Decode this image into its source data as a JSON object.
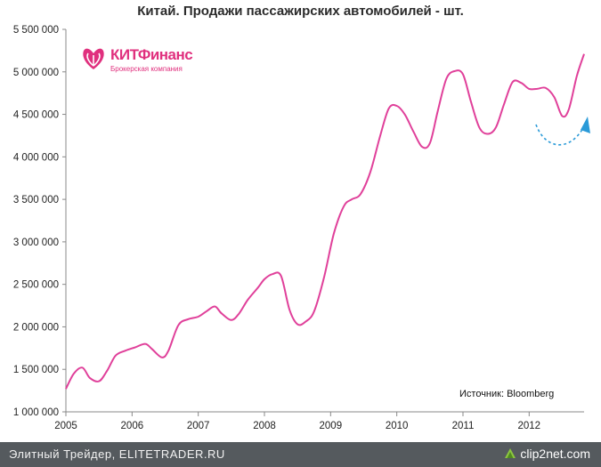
{
  "chart_data": {
    "type": "line",
    "title": "Китай. Продажи пассажирских автомобилей - шт.",
    "xlabel": "",
    "ylabel": "",
    "xlim": [
      2005.0,
      2012.83
    ],
    "ylim": [
      1000000,
      5500000
    ],
    "y_ticks": [
      "1 000 000",
      "1 500 000",
      "2 000 000",
      "2 500 000",
      "3 000 000",
      "3 500 000",
      "4 000 000",
      "4 500 000",
      "5 000 000",
      "5 500 000"
    ],
    "y_tick_values": [
      1000000,
      1500000,
      2000000,
      2500000,
      3000000,
      3500000,
      4000000,
      4500000,
      5000000,
      5500000
    ],
    "x_ticks": [
      "2005",
      "2006",
      "2007",
      "2008",
      "2009",
      "2010",
      "2011",
      "2012"
    ],
    "x_tick_values": [
      2005,
      2006,
      2007,
      2008,
      2009,
      2010,
      2011,
      2012
    ],
    "grid": false,
    "line_color": "#e0409a",
    "arrow_color": "#2a9ad8",
    "series": [
      {
        "points": [
          [
            2005.0,
            1270000
          ],
          [
            2005.12,
            1450000
          ],
          [
            2005.25,
            1520000
          ],
          [
            2005.36,
            1400000
          ],
          [
            2005.5,
            1360000
          ],
          [
            2005.62,
            1480000
          ],
          [
            2005.75,
            1660000
          ],
          [
            2005.9,
            1720000
          ],
          [
            2006.05,
            1760000
          ],
          [
            2006.2,
            1800000
          ],
          [
            2006.3,
            1740000
          ],
          [
            2006.45,
            1640000
          ],
          [
            2006.55,
            1720000
          ],
          [
            2006.7,
            2020000
          ],
          [
            2006.85,
            2090000
          ],
          [
            2007.0,
            2120000
          ],
          [
            2007.12,
            2180000
          ],
          [
            2007.25,
            2240000
          ],
          [
            2007.35,
            2160000
          ],
          [
            2007.5,
            2080000
          ],
          [
            2007.62,
            2160000
          ],
          [
            2007.75,
            2320000
          ],
          [
            2007.9,
            2460000
          ],
          [
            2008.0,
            2560000
          ],
          [
            2008.12,
            2620000
          ],
          [
            2008.25,
            2600000
          ],
          [
            2008.38,
            2200000
          ],
          [
            2008.5,
            2030000
          ],
          [
            2008.62,
            2060000
          ],
          [
            2008.75,
            2180000
          ],
          [
            2008.9,
            2580000
          ],
          [
            2009.05,
            3100000
          ],
          [
            2009.2,
            3420000
          ],
          [
            2009.32,
            3500000
          ],
          [
            2009.45,
            3560000
          ],
          [
            2009.6,
            3820000
          ],
          [
            2009.75,
            4250000
          ],
          [
            2009.88,
            4570000
          ],
          [
            2010.0,
            4600000
          ],
          [
            2010.12,
            4500000
          ],
          [
            2010.25,
            4300000
          ],
          [
            2010.38,
            4120000
          ],
          [
            2010.5,
            4160000
          ],
          [
            2010.62,
            4540000
          ],
          [
            2010.75,
            4920000
          ],
          [
            2010.88,
            5010000
          ],
          [
            2011.0,
            4970000
          ],
          [
            2011.12,
            4650000
          ],
          [
            2011.25,
            4340000
          ],
          [
            2011.38,
            4270000
          ],
          [
            2011.5,
            4350000
          ],
          [
            2011.62,
            4620000
          ],
          [
            2011.75,
            4880000
          ],
          [
            2011.88,
            4870000
          ],
          [
            2012.0,
            4800000
          ],
          [
            2012.12,
            4800000
          ],
          [
            2012.25,
            4810000
          ],
          [
            2012.38,
            4700000
          ],
          [
            2012.5,
            4480000
          ],
          [
            2012.6,
            4560000
          ],
          [
            2012.72,
            4950000
          ],
          [
            2012.83,
            5210000
          ]
        ]
      }
    ]
  },
  "logo": {
    "name": "КИТФинанс",
    "subtitle": "Брокерская компания"
  },
  "source_note": "Источник: Bloomberg",
  "footer": {
    "text": "Элитный Трейдер, ELITETRADER.RU",
    "brand": "clip2net.com"
  }
}
